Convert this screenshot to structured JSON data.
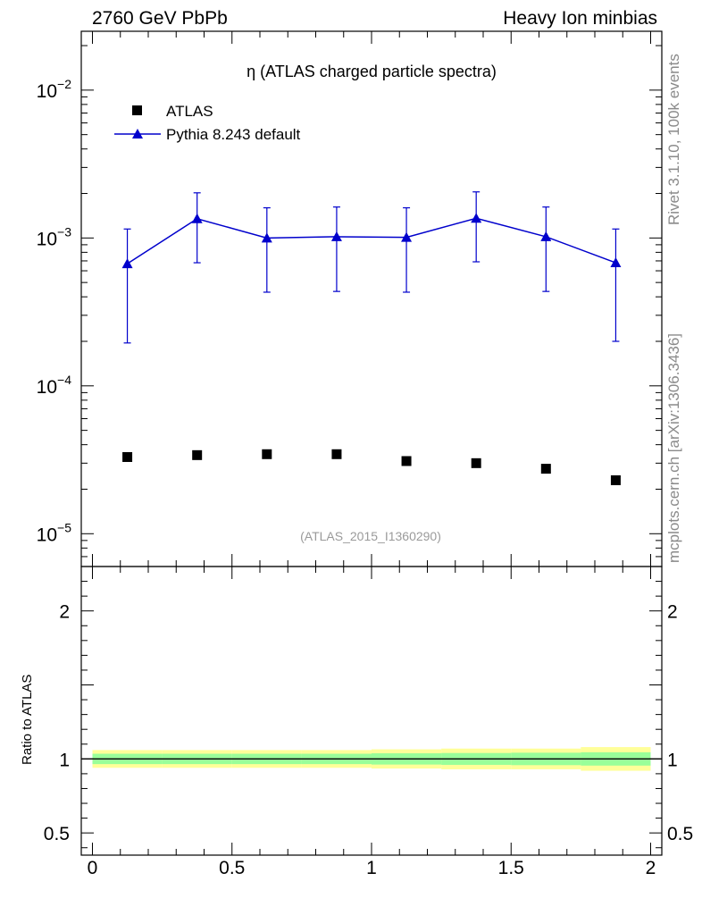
{
  "header": {
    "left": "2760 GeV PbPb",
    "right": "Heavy Ion minbias"
  },
  "side_labels": {
    "rivet": "Rivet 3.1.10,  100k events",
    "mcplots": "mcplots.cern.ch [arXiv:1306.3436]"
  },
  "colors": {
    "pythia": "#0000cc",
    "data": "#000000",
    "band_outer": "#ffff99",
    "band_inner": "#99ff99"
  },
  "chart_data": [
    {
      "type": "scatter",
      "title": "η (ATLAS charged particle spectra)",
      "watermark": "(ATLAS_2015_I1360290)",
      "yscale": "log",
      "xlim": [
        -0.04,
        2.04
      ],
      "ylim": [
        6e-06,
        0.025
      ],
      "yticks": [
        {
          "value": 0.01,
          "base": "10",
          "exp": "−2"
        },
        {
          "value": 0.001,
          "base": "10",
          "exp": "−3"
        },
        {
          "value": 0.0001,
          "base": "10",
          "exp": "−4"
        },
        {
          "value": 1e-05,
          "base": "10",
          "exp": "−5"
        }
      ],
      "legend": {
        "position": "top-left"
      },
      "x": [
        0.125,
        0.375,
        0.625,
        0.875,
        1.125,
        1.375,
        1.625,
        1.875
      ],
      "xerr": 0.125,
      "series": [
        {
          "name": "ATLAS",
          "marker": "square",
          "values": [
            3.3e-05,
            3.4e-05,
            3.45e-05,
            3.45e-05,
            3.1e-05,
            3e-05,
            2.75e-05,
            2.3e-05
          ]
        },
        {
          "name": "Pythia 8.243 default",
          "marker": "triangle",
          "line": true,
          "values": [
            0.00067,
            0.00135,
            0.001,
            0.00102,
            0.00101,
            0.00136,
            0.00102,
            0.00068
          ],
          "err_low": [
            0.000195,
            0.00068,
            0.00043,
            0.000435,
            0.00043,
            0.00069,
            0.000435,
            0.0002
          ],
          "err_high": [
            0.00115,
            0.00202,
            0.0016,
            0.00162,
            0.0016,
            0.00205,
            0.00162,
            0.00115
          ]
        }
      ]
    },
    {
      "type": "line",
      "ylabel": "Ratio to ATLAS",
      "xlim": [
        -0.04,
        2.04
      ],
      "ylim": [
        0.35,
        2.3
      ],
      "xticks": [
        {
          "value": 0,
          "label": "0"
        },
        {
          "value": 0.5,
          "label": "0.5"
        },
        {
          "value": 1,
          "label": "1"
        },
        {
          "value": 1.5,
          "label": "1.5"
        },
        {
          "value": 2,
          "label": "2"
        }
      ],
      "yticks": [
        {
          "value": 0.5,
          "label": "0.5"
        },
        {
          "value": 1,
          "label": "1"
        },
        {
          "value": 2,
          "label": "2"
        }
      ],
      "reference_line": 1,
      "bands": [
        {
          "x0": 0.0,
          "x1": 0.25,
          "outer": [
            0.94,
            1.06
          ],
          "inner": [
            0.965,
            1.035
          ]
        },
        {
          "x0": 0.25,
          "x1": 0.5,
          "outer": [
            0.94,
            1.06
          ],
          "inner": [
            0.965,
            1.035
          ]
        },
        {
          "x0": 0.5,
          "x1": 0.75,
          "outer": [
            0.94,
            1.06
          ],
          "inner": [
            0.965,
            1.035
          ]
        },
        {
          "x0": 0.75,
          "x1": 1.0,
          "outer": [
            0.94,
            1.06
          ],
          "inner": [
            0.965,
            1.035
          ]
        },
        {
          "x0": 1.0,
          "x1": 1.25,
          "outer": [
            0.935,
            1.065
          ],
          "inner": [
            0.962,
            1.038
          ]
        },
        {
          "x0": 1.25,
          "x1": 1.5,
          "outer": [
            0.93,
            1.07
          ],
          "inner": [
            0.96,
            1.04
          ]
        },
        {
          "x0": 1.5,
          "x1": 1.75,
          "outer": [
            0.93,
            1.07
          ],
          "inner": [
            0.958,
            1.042
          ]
        },
        {
          "x0": 1.75,
          "x1": 2.0,
          "outer": [
            0.92,
            1.08
          ],
          "inner": [
            0.955,
            1.045
          ]
        }
      ]
    }
  ]
}
